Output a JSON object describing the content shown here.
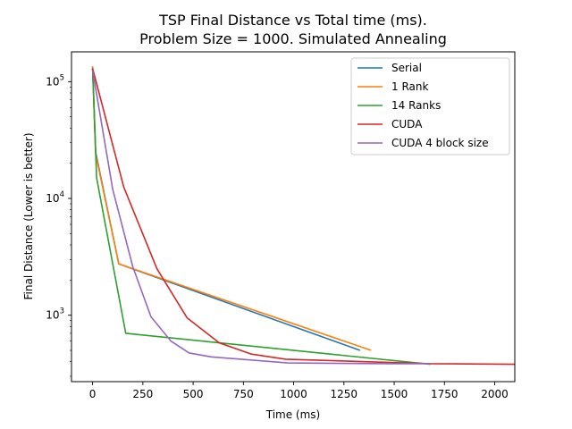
{
  "chart_data": {
    "type": "line",
    "title": [
      "TSP Final Distance vs Total time (ms).",
      "Problem Size = 1000. Simulated Annealing"
    ],
    "xlabel": "Time (ms)",
    "ylabel": "Final Distance (Lower is better)",
    "xlim": [
      -105,
      2100
    ],
    "ylim": [
      270,
      180000
    ],
    "yscale": "log",
    "x_ticks": [
      0,
      250,
      500,
      750,
      1000,
      1250,
      1500,
      1750,
      2000
    ],
    "x_tick_labels": [
      "0",
      "250",
      "500",
      "750",
      "1000",
      "1250",
      "1500",
      "1750",
      "2000"
    ],
    "y_ticks": [
      1000,
      10000,
      100000
    ],
    "y_tick_labels": [
      "10^3",
      "10^4",
      "10^5"
    ],
    "grid": false,
    "legend_position": "upper right",
    "series": [
      {
        "name": "Serial",
        "color": "#1f77b4",
        "x": [
          0,
          15,
          130,
          1330
        ],
        "y": [
          135000,
          25000,
          2750,
          500
        ]
      },
      {
        "name": "1 Rank",
        "color": "#ff7f0e",
        "x": [
          0,
          15,
          130,
          1385
        ],
        "y": [
          135000,
          24000,
          2750,
          500
        ]
      },
      {
        "name": "14 Ranks",
        "color": "#2ca02c",
        "x": [
          0,
          20,
          165,
          1680
        ],
        "y": [
          130000,
          15000,
          700,
          380
        ]
      },
      {
        "name": "CUDA",
        "color": "#d62728",
        "x": [
          0,
          155,
          320,
          470,
          630,
          790,
          960,
          1680,
          2100
        ],
        "y": [
          130000,
          12500,
          2500,
          950,
          580,
          465,
          420,
          385,
          380
        ]
      },
      {
        "name": "CUDA 4 block size",
        "color": "#9467bd",
        "x": [
          0,
          100,
          200,
          290,
          390,
          480,
          590,
          970,
          1470,
          1680
        ],
        "y": [
          125000,
          12000,
          2600,
          970,
          600,
          475,
          440,
          390,
          385,
          385
        ]
      }
    ]
  }
}
